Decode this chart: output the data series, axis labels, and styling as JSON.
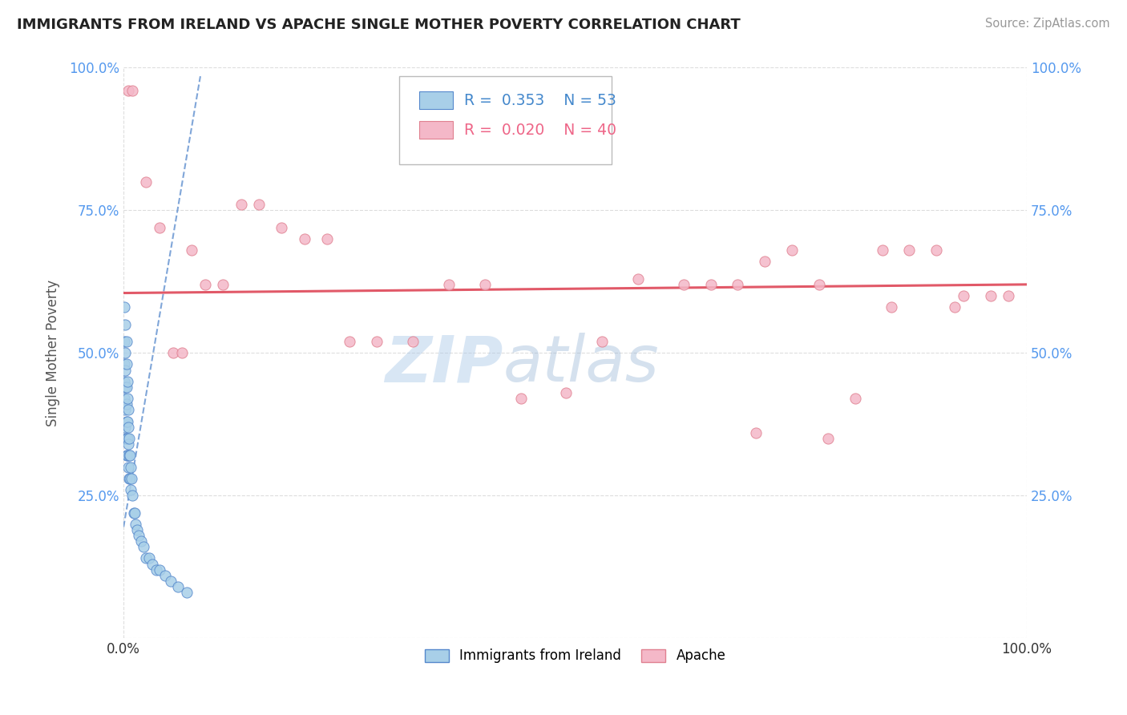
{
  "title": "IMMIGRANTS FROM IRELAND VS APACHE SINGLE MOTHER POVERTY CORRELATION CHART",
  "source": "Source: ZipAtlas.com",
  "ylabel": "Single Mother Poverty",
  "legend_label1": "Immigrants from Ireland",
  "legend_label2": "Apache",
  "R1": 0.353,
  "N1": 53,
  "R2": 0.02,
  "N2": 40,
  "watermark_zip": "ZIP",
  "watermark_atlas": "atlas",
  "color_ireland": "#a8cfe8",
  "color_apache": "#f4b8c8",
  "color_ireland_line": "#5588cc",
  "color_apache_line": "#e05060",
  "ireland_x": [
    0.001,
    0.001,
    0.001,
    0.001,
    0.001,
    0.002,
    0.002,
    0.002,
    0.002,
    0.002,
    0.002,
    0.002,
    0.003,
    0.003,
    0.003,
    0.003,
    0.003,
    0.003,
    0.003,
    0.004,
    0.004,
    0.004,
    0.004,
    0.004,
    0.005,
    0.005,
    0.005,
    0.005,
    0.006,
    0.006,
    0.006,
    0.007,
    0.007,
    0.008,
    0.008,
    0.009,
    0.01,
    0.011,
    0.012,
    0.013,
    0.015,
    0.017,
    0.019,
    0.022,
    0.025,
    0.028,
    0.032,
    0.036,
    0.04,
    0.046,
    0.052,
    0.06,
    0.07
  ],
  "ireland_y": [
    0.58,
    0.52,
    0.48,
    0.45,
    0.42,
    0.55,
    0.5,
    0.47,
    0.44,
    0.4,
    0.37,
    0.35,
    0.52,
    0.48,
    0.44,
    0.41,
    0.38,
    0.35,
    0.32,
    0.45,
    0.42,
    0.38,
    0.35,
    0.32,
    0.4,
    0.37,
    0.34,
    0.3,
    0.35,
    0.32,
    0.28,
    0.32,
    0.28,
    0.3,
    0.26,
    0.28,
    0.25,
    0.22,
    0.22,
    0.2,
    0.19,
    0.18,
    0.17,
    0.16,
    0.14,
    0.14,
    0.13,
    0.12,
    0.12,
    0.11,
    0.1,
    0.09,
    0.08
  ],
  "apache_x": [
    0.005,
    0.01,
    0.025,
    0.04,
    0.055,
    0.065,
    0.075,
    0.09,
    0.11,
    0.13,
    0.15,
    0.175,
    0.2,
    0.225,
    0.25,
    0.28,
    0.32,
    0.36,
    0.4,
    0.44,
    0.49,
    0.53,
    0.57,
    0.62,
    0.65,
    0.68,
    0.71,
    0.74,
    0.77,
    0.81,
    0.84,
    0.87,
    0.9,
    0.93,
    0.96,
    0.98,
    0.92,
    0.85,
    0.78,
    0.7
  ],
  "apache_y": [
    0.96,
    0.96,
    0.8,
    0.72,
    0.5,
    0.5,
    0.68,
    0.62,
    0.62,
    0.76,
    0.76,
    0.72,
    0.7,
    0.7,
    0.52,
    0.52,
    0.52,
    0.62,
    0.62,
    0.42,
    0.43,
    0.52,
    0.63,
    0.62,
    0.62,
    0.62,
    0.66,
    0.68,
    0.62,
    0.42,
    0.68,
    0.68,
    0.68,
    0.6,
    0.6,
    0.6,
    0.58,
    0.58,
    0.35,
    0.36
  ],
  "ireland_trend_x": [
    0.0,
    0.085
  ],
  "ireland_trend_y": [
    0.195,
    0.985
  ],
  "apache_trend_x": [
    0.0,
    1.0
  ],
  "apache_trend_y": [
    0.605,
    0.62
  ],
  "xlim": [
    0.0,
    1.0
  ],
  "ylim": [
    0.0,
    1.0
  ],
  "yticks": [
    0.0,
    0.25,
    0.5,
    0.75,
    1.0
  ],
  "ytick_labels_left": [
    "",
    "25.0%",
    "50.0%",
    "75.0%",
    "100.0%"
  ],
  "ytick_labels_right": [
    "",
    "25.0%",
    "50.0%",
    "75.0%",
    "100.0%"
  ],
  "xtick_labels": [
    "0.0%",
    "100.0%"
  ],
  "grid_color": "#dddddd",
  "tick_color": "#5599ee",
  "title_color": "#222222",
  "source_color": "#999999"
}
